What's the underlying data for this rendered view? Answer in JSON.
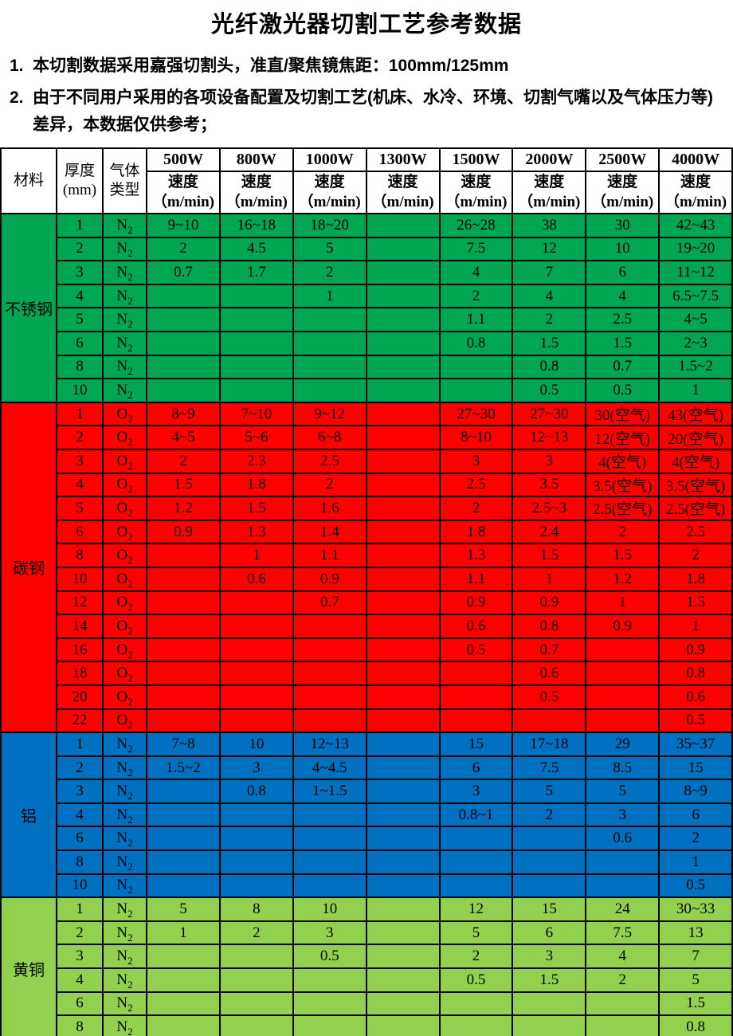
{
  "title": "光纤激光器切割工艺参考数据",
  "notes": [
    {
      "num": "1.",
      "text": "本切割数据采用嘉强切割头，准直/聚焦镜焦距：100mm/125mm"
    },
    {
      "num": "2.",
      "text": "由于不同用户采用的各项设备配置及切割工艺(机床、水冷、环境、切割气嘴以及气体压力等)差异，本数据仅供参考；"
    }
  ],
  "table": {
    "border_color": "#000000",
    "header_background": "#FFFFFF",
    "corner_headers": [
      {
        "id": "material",
        "lines": [
          "材料"
        ]
      },
      {
        "id": "thickness",
        "lines": [
          "厚度",
          "(mm)"
        ]
      },
      {
        "id": "gas-type",
        "lines": [
          "气体",
          "类型"
        ]
      }
    ],
    "power_columns": [
      "500W",
      "800W",
      "1000W",
      "1300W",
      "1500W",
      "2000W",
      "2500W",
      "4000W"
    ],
    "speed_header": {
      "label": "速度",
      "unit": "（m/min)"
    },
    "sections": [
      {
        "id": "stainless-steel",
        "material": "不锈钢",
        "color": "#00A651",
        "rows": [
          {
            "thickness": "1",
            "gas": "N2",
            "speeds": [
              "9~10",
              "16~18",
              "18~20",
              "",
              "26~28",
              "38",
              "30",
              "42~43"
            ]
          },
          {
            "thickness": "2",
            "gas": "N2",
            "speeds": [
              "2",
              "4.5",
              "5",
              "",
              "7.5",
              "12",
              "10",
              "19~20"
            ]
          },
          {
            "thickness": "3",
            "gas": "N2",
            "speeds": [
              "0.7",
              "1.7",
              "2",
              "",
              "4",
              "7",
              "6",
              "11~12"
            ]
          },
          {
            "thickness": "4",
            "gas": "N2",
            "speeds": [
              "",
              "",
              "1",
              "",
              "2",
              "4",
              "4",
              "6.5~7.5"
            ]
          },
          {
            "thickness": "5",
            "gas": "N2",
            "speeds": [
              "",
              "",
              "",
              "",
              "1.1",
              "2",
              "2.5",
              "4~5"
            ]
          },
          {
            "thickness": "6",
            "gas": "N2",
            "speeds": [
              "",
              "",
              "",
              "",
              "0.8",
              "1.5",
              "1.5",
              "2~3"
            ]
          },
          {
            "thickness": "8",
            "gas": "N2",
            "speeds": [
              "",
              "",
              "",
              "",
              "",
              "0.8",
              "0.7",
              "1.5~2"
            ]
          },
          {
            "thickness": "10",
            "gas": "N2",
            "speeds": [
              "",
              "",
              "",
              "",
              "",
              "0.5",
              "0.5",
              "1"
            ]
          }
        ]
      },
      {
        "id": "carbon-steel",
        "material": "碳钢",
        "color": "#FE0000",
        "rows": [
          {
            "thickness": "1",
            "gas": "O2",
            "speeds": [
              "8~9",
              "7~10",
              "9~12",
              "",
              "27~30",
              "27~30",
              "30(空气)",
              "43(空气)"
            ]
          },
          {
            "thickness": "2",
            "gas": "O2",
            "speeds": [
              "4~5",
              "5~6",
              "6~8",
              "",
              "8~10",
              "12~13",
              "12(空气)",
              "20(空气)"
            ]
          },
          {
            "thickness": "3",
            "gas": "O2",
            "speeds": [
              "2",
              "2.3",
              "2.5",
              "",
              "3",
              "3",
              "4(空气)",
              "4(空气)"
            ]
          },
          {
            "thickness": "4",
            "gas": "O2",
            "speeds": [
              "1.5",
              "1.8",
              "2",
              "",
              "2.5",
              "3.5",
              "3.5(空气)",
              "3.5(空气)"
            ]
          },
          {
            "thickness": "5",
            "gas": "O2",
            "speeds": [
              "1.2",
              "1.5",
              "1.6",
              "",
              "2",
              "2.5~3",
              "2.5(空气)",
              "2.5(空气)"
            ]
          },
          {
            "thickness": "6",
            "gas": "O2",
            "speeds": [
              "0.9",
              "1.3",
              "1.4",
              "",
              "1.8",
              "2.4",
              "2",
              "2.5"
            ]
          },
          {
            "thickness": "8",
            "gas": "O2",
            "speeds": [
              "",
              "1",
              "1.1",
              "",
              "1.3",
              "1.5",
              "1.5",
              "2"
            ]
          },
          {
            "thickness": "10",
            "gas": "O2",
            "speeds": [
              "",
              "0.6",
              "0.9",
              "",
              "1.1",
              "1",
              "1.2",
              "1.8"
            ]
          },
          {
            "thickness": "12",
            "gas": "O2",
            "speeds": [
              "",
              "",
              "0.7",
              "",
              "0.9",
              "0.9",
              "1",
              "1.5"
            ]
          },
          {
            "thickness": "14",
            "gas": "O2",
            "speeds": [
              "",
              "",
              "",
              "",
              "0.6",
              "0.8",
              "0.9",
              "1"
            ]
          },
          {
            "thickness": "16",
            "gas": "O2",
            "speeds": [
              "",
              "",
              "",
              "",
              "0.5",
              "0.7",
              "",
              "0.9"
            ]
          },
          {
            "thickness": "18",
            "gas": "O2",
            "speeds": [
              "",
              "",
              "",
              "",
              "",
              "0.6",
              "",
              "0.8"
            ]
          },
          {
            "thickness": "20",
            "gas": "O2",
            "speeds": [
              "",
              "",
              "",
              "",
              "",
              "0.5",
              "",
              "0.6"
            ]
          },
          {
            "thickness": "22",
            "gas": "O2",
            "speeds": [
              "",
              "",
              "",
              "",
              "",
              "",
              "",
              "0.5"
            ]
          }
        ]
      },
      {
        "id": "aluminum",
        "material": "铝",
        "color": "#0070C0",
        "rows": [
          {
            "thickness": "1",
            "gas": "N2",
            "speeds": [
              "7~8",
              "10",
              "12~13",
              "",
              "15",
              "17~18",
              "29",
              "35~37"
            ]
          },
          {
            "thickness": "2",
            "gas": "N2",
            "speeds": [
              "1.5~2",
              "3",
              "4~4.5",
              "",
              "6",
              "7.5",
              "8.5",
              "15"
            ]
          },
          {
            "thickness": "3",
            "gas": "N2",
            "speeds": [
              "",
              "0.8",
              "1~1.5",
              "",
              "3",
              "5",
              "5",
              "8~9"
            ]
          },
          {
            "thickness": "4",
            "gas": "N2",
            "speeds": [
              "",
              "",
              "",
              "",
              "0.8~1",
              "2",
              "3",
              "6"
            ]
          },
          {
            "thickness": "6",
            "gas": "N2",
            "speeds": [
              "",
              "",
              "",
              "",
              "",
              "",
              "0.6",
              "2"
            ]
          },
          {
            "thickness": "8",
            "gas": "N2",
            "speeds": [
              "",
              "",
              "",
              "",
              "",
              "",
              "",
              "1"
            ]
          },
          {
            "thickness": "10",
            "gas": "N2",
            "speeds": [
              "",
              "",
              "",
              "",
              "",
              "",
              "",
              "0.5"
            ]
          }
        ]
      },
      {
        "id": "brass",
        "material": "黄铜",
        "color": "#92D050",
        "rows": [
          {
            "thickness": "1",
            "gas": "N2",
            "speeds": [
              "5",
              "8",
              "10",
              "",
              "12",
              "15",
              "24",
              "30~33"
            ]
          },
          {
            "thickness": "2",
            "gas": "N2",
            "speeds": [
              "1",
              "2",
              "3",
              "",
              "5",
              "6",
              "7.5",
              "13"
            ]
          },
          {
            "thickness": "3",
            "gas": "N2",
            "speeds": [
              "",
              "",
              "0.5",
              "",
              "2",
              "3",
              "4",
              "7"
            ]
          },
          {
            "thickness": "4",
            "gas": "N2",
            "speeds": [
              "",
              "",
              "",
              "",
              "0.5",
              "1.5",
              "2",
              "5"
            ]
          },
          {
            "thickness": "6",
            "gas": "N2",
            "speeds": [
              "",
              "",
              "",
              "",
              "",
              "",
              "",
              "1.5"
            ]
          },
          {
            "thickness": "8",
            "gas": "N2",
            "speeds": [
              "",
              "",
              "",
              "",
              "",
              "",
              "",
              "0.8"
            ]
          }
        ]
      }
    ]
  }
}
